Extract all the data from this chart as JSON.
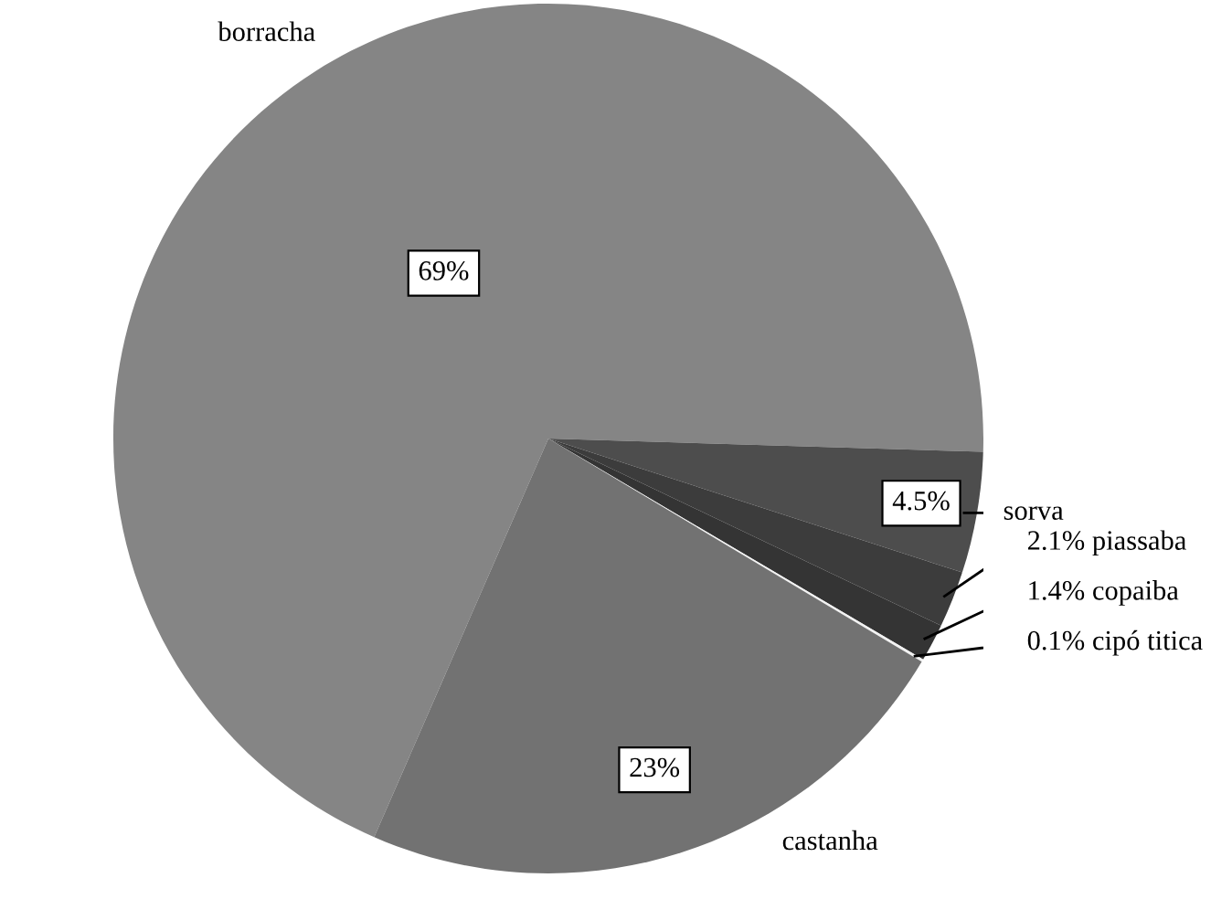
{
  "chart_data": {
    "type": "pie",
    "categories": [
      "borracha",
      "sorva",
      "piassaba",
      "copaiba",
      "cipó titica",
      "castanha"
    ],
    "values": [
      69,
      4.5,
      2.1,
      1.4,
      0.1,
      23
    ],
    "value_labels": [
      "69%",
      "4.5%",
      "2.1%",
      "1.4%",
      "0.1%",
      "23%"
    ],
    "colors": [
      "#858585",
      "#4d4d4d",
      "#3c3c3c",
      "#343434",
      "#f2f2f2",
      "#727272"
    ],
    "legend": false
  }
}
